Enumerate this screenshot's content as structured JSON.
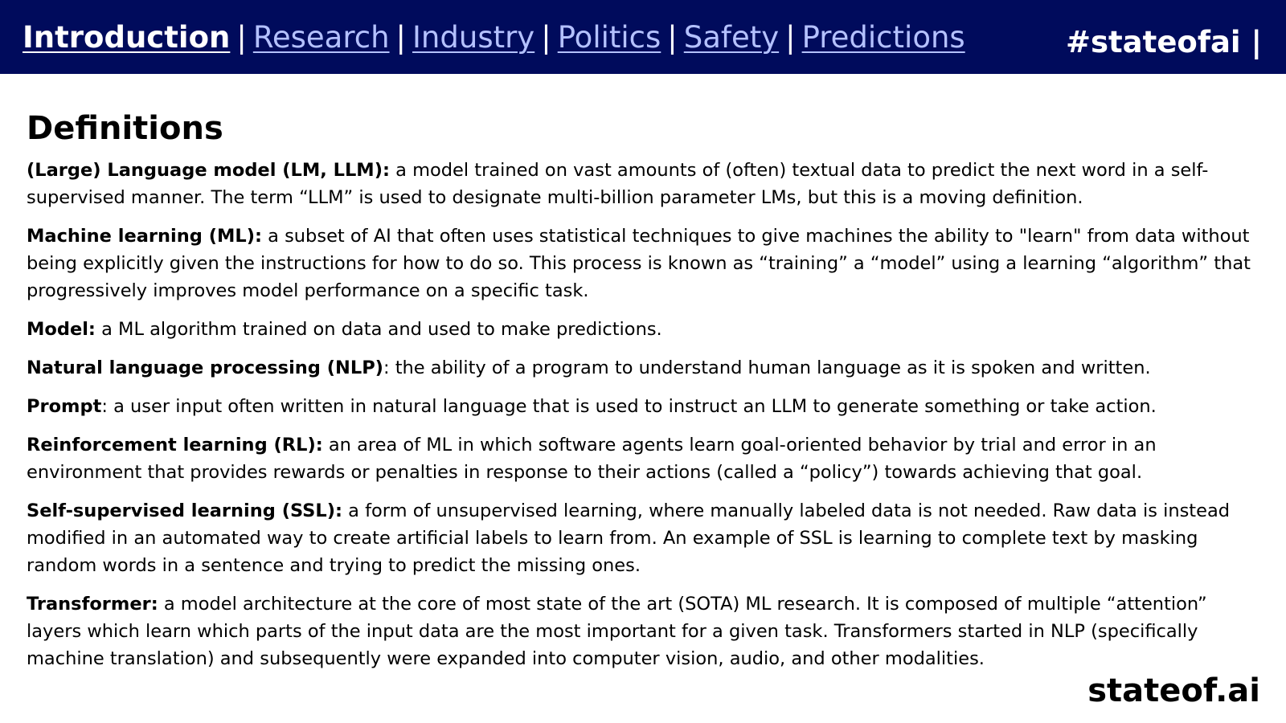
{
  "nav": {
    "items": [
      {
        "label": "Introduction",
        "active": true
      },
      {
        "label": "Research",
        "active": false
      },
      {
        "label": "Industry",
        "active": false
      },
      {
        "label": "Politics",
        "active": false
      },
      {
        "label": "Safety",
        "active": false
      },
      {
        "label": "Predictions",
        "active": false
      }
    ],
    "separator": "|",
    "hashtag": "#stateofai |"
  },
  "page": {
    "title": "Definitions",
    "definitions": [
      {
        "term": "(Large) Language model (LM, LLM):",
        "text": " a model trained on vast amounts of (often) textual data to predict the next word in a self-supervised manner. The term “LLM” is used to designate multi-billion parameter LMs, but this is a moving definition."
      },
      {
        "term": "Machine learning (ML):",
        "text": " a subset of AI that often uses statistical techniques to give machines the ability to \"learn\" from data without being explicitly given the instructions for how to do so. This process is known as “training” a “model” using a learning “algorithm” that",
        "text2": "progressively improves model performance on a specific task."
      },
      {
        "term": "Model:",
        "text": " a ML algorithm trained on data and used to make predictions."
      },
      {
        "term": "Natural language processing (NLP)",
        "text": ": the ability of a program to understand human language as it is spoken and written."
      },
      {
        "term": "Prompt",
        "text": ": a user input often written in natural language that is used to instruct an LLM to generate something or take action."
      },
      {
        "term": "Reinforcement learning (RL):",
        "text": " an area of ML in which software agents learn goal-oriented behavior by trial and error in an environment that provides rewards or penalties in response to their actions (called a “policy”) towards achieving that goal."
      },
      {
        "term": "Self-supervised learning (SSL):",
        "text": " a form of unsupervised learning, where manually labeled data is not needed. Raw data is instead modified in an automated way to create artificial labels to learn from. An example of SSL is learning to complete text by masking random words in a sentence and trying to predict the missing ones."
      },
      {
        "term": "Transformer:",
        "text": " a model architecture at the core of most state of the art (SOTA) ML research. It is composed of multiple “attention” layers which learn which parts of the input data are the most important for a given task. Transformers started in NLP (specifically machine translation) and subsequently were expanded into computer vision, audio, and other modalities."
      }
    ]
  },
  "footer": {
    "brand": "stateof.ai"
  },
  "colors": {
    "topbar_background": "#000b5c",
    "nav_link": "#b4c1ff",
    "active_link": "#ffffff",
    "text": "#000000"
  }
}
